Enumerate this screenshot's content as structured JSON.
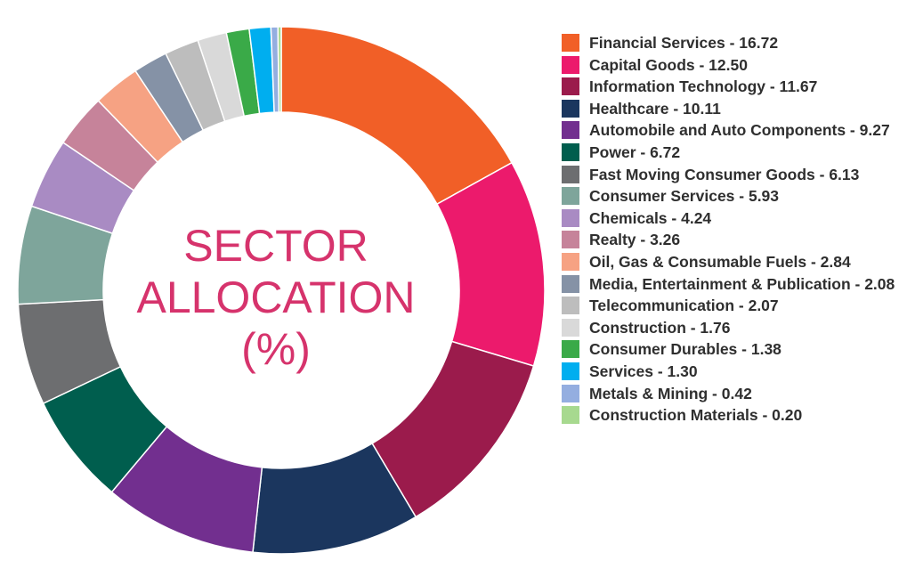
{
  "chart_data": {
    "type": "pie",
    "title_lines": [
      "SECTOR",
      "ALLOCATION",
      "(%)"
    ],
    "slices": [
      {
        "label": "Financial Services",
        "value": 16.72,
        "color": "#f15f27",
        "text": "Financial Services - 16.72"
      },
      {
        "label": "Capital Goods",
        "value": 12.5,
        "color": "#ec1a6c",
        "text": "Capital Goods - 12.50"
      },
      {
        "label": "Information Technology",
        "value": 11.67,
        "color": "#9b1b4c",
        "text": "Information Technology - 11.67"
      },
      {
        "label": "Healthcare",
        "value": 10.11,
        "color": "#1b365e",
        "text": "Healthcare - 10.11"
      },
      {
        "label": "Automobile and Auto Components",
        "value": 9.27,
        "color": "#722f8f",
        "text": "Automobile and Auto Components - 9.27"
      },
      {
        "label": "Power",
        "value": 6.72,
        "color": "#005e4e",
        "text": "Power - 6.72"
      },
      {
        "label": "Fast Moving Consumer Goods",
        "value": 6.13,
        "color": "#6d6e70",
        "text": "Fast Moving Consumer Goods - 6.13"
      },
      {
        "label": "Consumer Services",
        "value": 5.93,
        "color": "#7ea59b",
        "text": "Consumer Services - 5.93"
      },
      {
        "label": "Chemicals",
        "value": 4.24,
        "color": "#a98bc3",
        "text": "Chemicals - 4.24"
      },
      {
        "label": "Realty",
        "value": 3.26,
        "color": "#c6839a",
        "text": "Realty - 3.26"
      },
      {
        "label": "Oil, Gas & Consumable Fuels",
        "value": 2.84,
        "color": "#f6a283",
        "text": "Oil, Gas & Consumable Fuels - 2.84"
      },
      {
        "label": "Media, Entertainment & Publication",
        "value": 2.08,
        "color": "#8592a6",
        "text": "Media, Entertainment & Publication - 2.08"
      },
      {
        "label": "Telecommunication",
        "value": 2.07,
        "color": "#bdbdbd",
        "text": "Telecommunication - 2.07"
      },
      {
        "label": "Construction",
        "value": 1.76,
        "color": "#d9d9d9",
        "text": "Construction - 1.76"
      },
      {
        "label": "Consumer Durables",
        "value": 1.38,
        "color": "#3aaa48",
        "text": "Consumer Durables - 1.38"
      },
      {
        "label": "Services",
        "value": 1.3,
        "color": "#00aeef",
        "text": "Services - 1.30"
      },
      {
        "label": "Metals & Mining",
        "value": 0.42,
        "color": "#94aee0",
        "text": "Metals & Mining - 0.42"
      },
      {
        "label": "Construction Materials",
        "value": 0.2,
        "color": "#a7d98f",
        "text": "Construction Materials - 0.20"
      }
    ]
  }
}
